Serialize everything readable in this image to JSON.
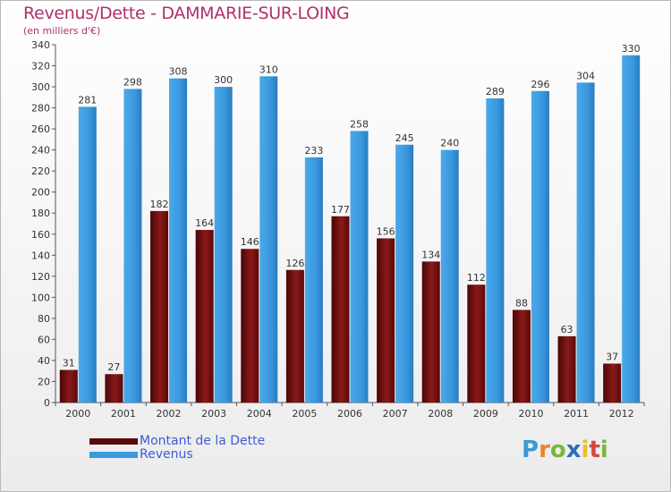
{
  "title": "Revenus/Dette - DAMMARIE-SUR-LOING",
  "subtitle": "(en milliers d'€)",
  "logo": {
    "letters": [
      "P",
      "r",
      "o",
      "x",
      "i",
      "t",
      "i"
    ],
    "colors": [
      "#3a9ad9",
      "#e8842c",
      "#7ab640",
      "#2f6fb5",
      "#e8c02c",
      "#d9463a",
      "#7ab640"
    ]
  },
  "colors": {
    "dette": "#7a1010",
    "revenus": "#3a9ae0"
  },
  "chart_data": {
    "type": "bar",
    "categories": [
      "2000",
      "2001",
      "2002",
      "2003",
      "2004",
      "2005",
      "2006",
      "2007",
      "2008",
      "2009",
      "2010",
      "2011",
      "2012"
    ],
    "series": [
      {
        "name": "Montant de la Dette",
        "values": [
          31,
          27,
          182,
          164,
          146,
          126,
          177,
          156,
          134,
          112,
          88,
          63,
          37
        ]
      },
      {
        "name": "Revenus",
        "values": [
          281,
          298,
          308,
          300,
          310,
          233,
          258,
          245,
          240,
          289,
          296,
          304,
          330
        ]
      }
    ],
    "ylim": [
      0,
      340
    ],
    "yticks": [
      0,
      20,
      40,
      60,
      80,
      100,
      120,
      140,
      160,
      180,
      200,
      220,
      240,
      260,
      280,
      300,
      320,
      340
    ],
    "grid": false,
    "legend": "bottom-left"
  }
}
